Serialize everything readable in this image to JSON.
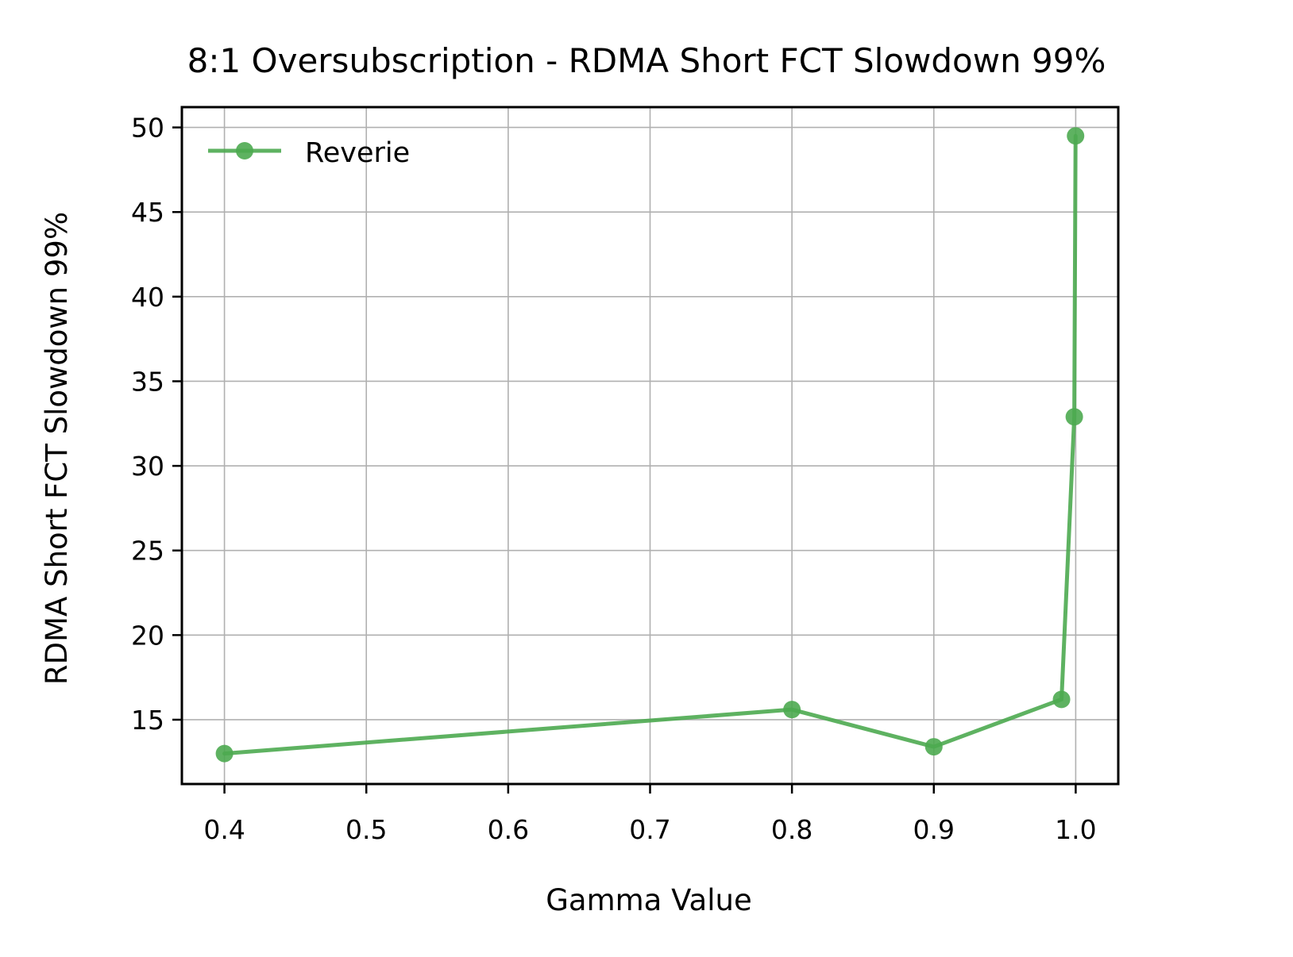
{
  "chart_data": {
    "type": "line",
    "title": "8:1 Oversubscription - RDMA Short FCT Slowdown 99%",
    "xlabel": "Gamma Value",
    "ylabel": "RDMA Short FCT Slowdown 99%",
    "xlim": [
      0.37,
      1.03
    ],
    "ylim": [
      11.2,
      51.2
    ],
    "xticks": [
      0.4,
      0.5,
      0.6,
      0.7,
      0.8,
      0.9,
      1.0
    ],
    "xtick_labels": [
      "0.4",
      "0.5",
      "0.6",
      "0.7",
      "0.8",
      "0.9",
      "1.0"
    ],
    "yticks": [
      15,
      20,
      25,
      30,
      35,
      40,
      45,
      50
    ],
    "ytick_labels": [
      "15",
      "20",
      "25",
      "30",
      "35",
      "40",
      "45",
      "50"
    ],
    "grid": true,
    "legend_position": "top-left",
    "series": [
      {
        "name": "Reverie",
        "color": "#4caa50",
        "marker": "circle",
        "x": [
          0.4,
          0.8,
          0.9,
          0.99,
          0.999,
          0.9999
        ],
        "y": [
          13.0,
          15.6,
          13.4,
          16.2,
          32.9,
          49.5
        ]
      }
    ]
  }
}
